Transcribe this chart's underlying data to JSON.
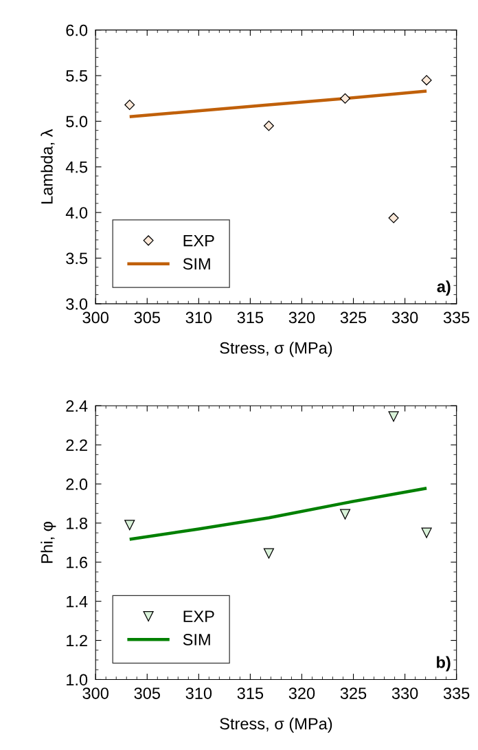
{
  "chart_data": [
    {
      "type": "scatter",
      "xlabel": "Stress, σ (MPa)",
      "ylabel": "Lambda, λ",
      "xlim": [
        300,
        335
      ],
      "xticks": [
        300,
        305,
        310,
        315,
        320,
        325,
        330,
        335
      ],
      "ylim": [
        3.0,
        6.0
      ],
      "yticks": [
        {
          "value": 3.0,
          "label": "3.0"
        },
        {
          "value": 3.5,
          "label": "3.5"
        },
        {
          "value": 4.0,
          "label": "4.0"
        },
        {
          "value": 4.5,
          "label": "4.5"
        },
        {
          "value": 5.0,
          "label": "5.0"
        },
        {
          "value": 5.5,
          "label": "5.5"
        },
        {
          "value": 6.0,
          "label": "6.0"
        }
      ],
      "legend": "bottom left",
      "grid": false,
      "annotations": [
        "a)"
      ],
      "series": [
        {
          "name": "EXP",
          "marker": "diamond",
          "color": "#fde9d9",
          "x": [
            303.3,
            316.8,
            324.2,
            328.9,
            332.1
          ],
          "values": [
            5.18,
            4.95,
            5.25,
            3.94,
            5.45
          ]
        },
        {
          "name": "SIM",
          "type": "line",
          "color": "#c0600a",
          "x": [
            303.3,
            316.8,
            324.2,
            332.1
          ],
          "values": [
            5.05,
            5.18,
            5.25,
            5.33
          ]
        }
      ]
    },
    {
      "type": "scatter",
      "xlabel": "Stress, σ (MPa)",
      "ylabel": "Phi, φ",
      "xlim": [
        300,
        335
      ],
      "xticks": [
        300,
        305,
        310,
        315,
        320,
        325,
        330,
        335
      ],
      "ylim": [
        1.0,
        2.4
      ],
      "yticks": [
        {
          "value": 1.0,
          "label": "1.0"
        },
        {
          "value": 1.2,
          "label": "1.2"
        },
        {
          "value": 1.4,
          "label": "1.4"
        },
        {
          "value": 1.6,
          "label": "1.6"
        },
        {
          "value": 1.8,
          "label": "1.8"
        },
        {
          "value": 2.0,
          "label": "2.0"
        },
        {
          "value": 2.2,
          "label": "2.2"
        },
        {
          "value": 2.4,
          "label": "2.4"
        }
      ],
      "legend": "bottom left",
      "grid": false,
      "annotations": [
        "b)"
      ],
      "series": [
        {
          "name": "EXP",
          "marker": "triangle",
          "color": "#d9f2d9",
          "x": [
            303.3,
            316.8,
            324.2,
            328.9,
            332.1
          ],
          "values": [
            1.79,
            1.645,
            1.845,
            2.345,
            1.75
          ]
        },
        {
          "name": "SIM",
          "type": "line",
          "color": "#008000",
          "x": [
            303.3,
            310,
            316.8,
            324.2,
            332.1
          ],
          "values": [
            1.717,
            1.77,
            1.827,
            1.903,
            1.978
          ]
        }
      ]
    }
  ]
}
